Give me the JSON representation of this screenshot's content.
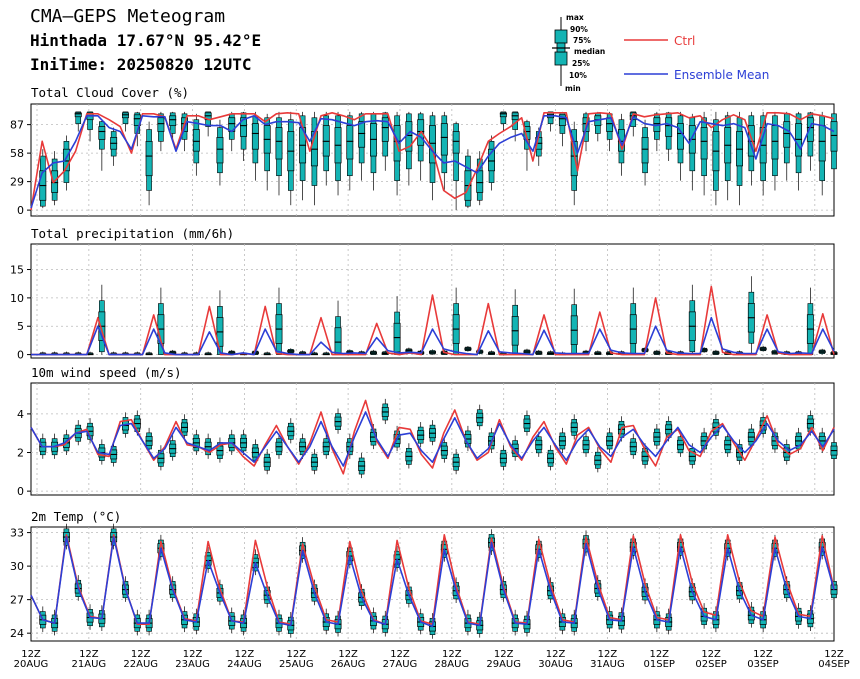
{
  "header": {
    "title": "CMA—GEPS Meteogram",
    "location": "Hinthada 17.67°N 95.42°E",
    "init": "IniTime: 20250820 12UTC"
  },
  "legend": {
    "box_labels": [
      "max",
      "90%",
      "75%",
      "median",
      "25%",
      "10%",
      "min"
    ],
    "ctrl": "Ctrl",
    "mean": "Ensemble Mean",
    "ctrl_color": "#e83a3a",
    "mean_color": "#2c3fd6",
    "box_color": "#14b4b4"
  },
  "chart_data": [
    {
      "type": "line",
      "title": "Total Cloud Cover (%)",
      "ylim": [
        -6,
        108
      ],
      "yticks": [
        0,
        29,
        58,
        87
      ],
      "grid": true,
      "x_step_hours": 6,
      "series": [
        {
          "name": "Ctrl",
          "values": [
            0,
            70,
            28,
            40,
            60,
            98,
            98,
            92,
            85,
            58,
            98,
            98,
            95,
            62,
            96,
            96,
            92,
            95,
            98,
            98,
            98,
            90,
            98,
            99,
            98,
            60,
            96,
            99,
            96,
            92,
            98,
            98,
            98,
            60,
            65,
            80,
            62,
            20,
            12,
            18,
            42,
            70,
            78,
            85,
            94,
            50,
            99,
            99,
            99,
            40,
            98,
            99,
            98,
            62,
            98,
            95,
            97,
            98,
            99,
            94,
            96,
            84,
            92,
            97,
            92,
            60,
            99,
            99,
            98,
            92,
            98,
            96,
            93
          ]
        },
        {
          "name": "Ensemble Mean",
          "values": [
            2,
            38,
            48,
            50,
            70,
            96,
            96,
            84,
            80,
            62,
            96,
            95,
            95,
            60,
            90,
            88,
            86,
            86,
            80,
            92,
            96,
            87,
            90,
            90,
            89,
            70,
            93,
            92,
            89,
            86,
            90,
            91,
            90,
            68,
            80,
            74,
            60,
            48,
            50,
            44,
            38,
            55,
            68,
            74,
            78,
            60,
            96,
            96,
            94,
            58,
            90,
            92,
            94,
            66,
            95,
            88,
            86,
            88,
            84,
            68,
            90,
            88,
            86,
            88,
            84,
            52,
            88,
            86,
            80,
            62,
            88,
            86,
            80
          ]
        }
      ],
      "boxes": [
        [
          0,
          30,
          58,
          70,
          80,
          88,
          90
        ],
        [
          2,
          4,
          10,
          25,
          40,
          55,
          62
        ],
        [
          5,
          10,
          18,
          28,
          40,
          52,
          60
        ],
        [
          20,
          28,
          40,
          50,
          62,
          70,
          76
        ],
        [
          80,
          88,
          95,
          98,
          99,
          100,
          100
        ],
        [
          70,
          82,
          92,
          96,
          99,
          100,
          100
        ],
        [
          40,
          62,
          72,
          80,
          85,
          90,
          92
        ],
        [
          45,
          55,
          62,
          68,
          74,
          80,
          84
        ],
        [
          80,
          88,
          94,
          97,
          99,
          100,
          100
        ],
        [
          65,
          78,
          86,
          93,
          97,
          99,
          100
        ],
        [
          5,
          20,
          35,
          55,
          70,
          82,
          90
        ],
        [
          60,
          70,
          80,
          88,
          94,
          98,
          100
        ],
        [
          70,
          78,
          86,
          92,
          96,
          99,
          100
        ],
        [
          60,
          72,
          80,
          88,
          94,
          98,
          100
        ],
        [
          35,
          48,
          60,
          70,
          82,
          92,
          98
        ],
        [
          75,
          85,
          92,
          96,
          99,
          100,
          100
        ],
        [
          25,
          38,
          48,
          62,
          74,
          84,
          92
        ],
        [
          60,
          72,
          80,
          88,
          94,
          98,
          100
        ],
        [
          50,
          62,
          75,
          86,
          94,
          99,
          100
        ],
        [
          30,
          48,
          62,
          78,
          88,
          96,
          100
        ],
        [
          20,
          40,
          58,
          72,
          86,
          94,
          98
        ],
        [
          15,
          35,
          52,
          70,
          84,
          94,
          100
        ],
        [
          5,
          20,
          40,
          60,
          80,
          92,
          100
        ],
        [
          10,
          30,
          48,
          66,
          84,
          96,
          100
        ],
        [
          5,
          25,
          45,
          62,
          80,
          94,
          100
        ],
        [
          25,
          40,
          55,
          70,
          86,
          96,
          100
        ],
        [
          15,
          30,
          48,
          66,
          84,
          96,
          100
        ],
        [
          20,
          35,
          52,
          70,
          86,
          96,
          100
        ],
        [
          30,
          48,
          64,
          78,
          90,
          98,
          100
        ],
        [
          20,
          38,
          55,
          72,
          88,
          98,
          100
        ],
        [
          40,
          55,
          70,
          84,
          94,
          99,
          100
        ],
        [
          15,
          30,
          50,
          70,
          86,
          96,
          100
        ],
        [
          25,
          42,
          60,
          76,
          90,
          98,
          100
        ],
        [
          30,
          50,
          66,
          80,
          92,
          98,
          100
        ],
        [
          10,
          28,
          48,
          68,
          86,
          96,
          100
        ],
        [
          20,
          38,
          56,
          74,
          88,
          96,
          100
        ]
      ]
    },
    {
      "type": "line",
      "title": "Total precipitation (mm/6h)",
      "ylim": [
        -0.6,
        19.5
      ],
      "yticks": [
        0,
        5,
        10,
        15
      ],
      "grid": true,
      "series": [
        {
          "name": "Ctrl",
          "values": [
            0,
            0,
            0,
            0,
            0,
            0,
            6.5,
            0,
            0,
            0,
            0,
            7,
            0,
            0,
            0,
            0,
            8.5,
            0,
            0,
            0.2,
            0,
            8.5,
            0.2,
            0,
            0,
            0,
            6.5,
            0,
            0,
            0,
            0,
            5.5,
            0.3,
            0,
            0.3,
            0,
            10.5,
            0.4,
            0,
            0,
            0,
            9,
            0,
            0,
            0,
            0,
            7,
            0,
            0,
            0,
            0,
            7.5,
            0.3,
            0,
            0,
            0,
            10,
            0.3,
            0,
            0,
            0,
            12,
            0.4,
            0,
            0,
            0,
            7,
            0.3,
            0,
            0,
            0,
            7.2,
            0
          ]
        },
        {
          "name": "Ensemble Mean",
          "values": [
            0,
            0,
            0,
            0,
            0,
            0,
            5,
            0,
            0,
            0,
            0,
            4.5,
            0.3,
            0,
            0,
            0,
            4,
            0.3,
            0,
            0.3,
            0,
            4.5,
            0.6,
            0.2,
            0,
            0,
            2.2,
            0.4,
            0.2,
            0.3,
            0.2,
            3,
            0.7,
            0.3,
            0.4,
            0.3,
            4.5,
            1,
            0.5,
            0.2,
            0,
            4.2,
            0.5,
            0.3,
            0.2,
            0,
            4.3,
            0.3,
            0.2,
            0.2,
            0.2,
            4.5,
            0.8,
            0.3,
            0.2,
            0.2,
            5,
            0.8,
            0.3,
            0.2,
            0.2,
            6.5,
            1,
            0.4,
            0.2,
            0.2,
            4.5,
            0.5,
            0.2,
            0.3,
            0.2,
            4.5,
            0.6
          ]
        }
      ]
    },
    {
      "type": "line",
      "title": "10m wind speed (m/s)",
      "ylim": [
        -0.2,
        5.6
      ],
      "yticks": [
        0,
        2,
        4
      ],
      "grid": true,
      "series": [
        {
          "name": "Ctrl",
          "values": [
            3.3,
            2.3,
            2.3,
            2.4,
            3.0,
            3.2,
            1.9,
            1.8,
            3.6,
            3.7,
            2.6,
            1.6,
            2.3,
            3.6,
            2.4,
            2.3,
            2.0,
            2.4,
            2.5,
            1.8,
            1.3,
            2.4,
            3.4,
            2.3,
            1.4,
            2.5,
            4.1,
            2.2,
            0.9,
            3.1,
            4.7,
            2.6,
            1.7,
            3.3,
            3.2,
            1.9,
            1.2,
            3.0,
            4.2,
            2.6,
            1.6,
            2.0,
            3.7,
            2.3,
            1.6,
            2.8,
            3.6,
            2.3,
            1.4,
            2.9,
            3.3,
            2.2,
            1.5,
            3.3,
            3.4,
            2.2,
            1.3,
            2.8,
            3.2,
            2.1,
            1.8,
            3.1,
            3.5,
            2.5,
            1.6,
            2.7,
            3.9,
            2.4,
            1.9,
            2.2,
            3.3,
            2.1,
            3.3
          ]
        },
        {
          "name": "Ensemble Mean",
          "values": [
            3.3,
            2.3,
            2.3,
            2.5,
            3.0,
            3.1,
            2.0,
            1.9,
            3.4,
            3.5,
            2.6,
            1.7,
            2.2,
            3.3,
            2.5,
            2.3,
            2.1,
            2.5,
            2.5,
            2.0,
            1.5,
            2.3,
            3.1,
            2.3,
            1.5,
            2.3,
            3.6,
            2.3,
            1.3,
            2.8,
            4.1,
            2.7,
            1.8,
            2.9,
            3.0,
            2.1,
            1.5,
            2.7,
            3.8,
            2.6,
            1.7,
            2.2,
            3.5,
            2.4,
            1.7,
            2.6,
            3.3,
            2.4,
            1.6,
            2.6,
            3.2,
            2.3,
            1.8,
            2.8,
            3.2,
            2.4,
            1.8,
            2.6,
            3.3,
            2.4,
            2.0,
            2.8,
            3.4,
            2.6,
            2.0,
            2.6,
            3.5,
            2.6,
            2.1,
            2.4,
            3.1,
            2.3,
            3.2
          ]
        }
      ]
    },
    {
      "type": "line",
      "title": "2m Temp (°C)",
      "ylim": [
        23.3,
        33.5
      ],
      "yticks": [
        24,
        27,
        30,
        33
      ],
      "grid": true,
      "series": [
        {
          "name": "Ctrl",
          "values": [
            27.4,
            25.2,
            24.9,
            32.8,
            28.2,
            25.5,
            25.3,
            32.8,
            28.0,
            24.8,
            24.8,
            32.2,
            28.1,
            25.3,
            25.1,
            32.2,
            28.0,
            25.1,
            25.0,
            32.3,
            28.2,
            25.0,
            24.8,
            32.0,
            28.2,
            25.2,
            25.0,
            32.2,
            27.8,
            25.2,
            24.8,
            32.3,
            28.0,
            25.1,
            24.8,
            32.8,
            28.2,
            25.0,
            24.8,
            32.5,
            28.2,
            25.0,
            24.9,
            32.4,
            28.3,
            25.2,
            25.0,
            32.6,
            28.5,
            25.4,
            25.2,
            32.7,
            28.4,
            25.4,
            25.2,
            32.8,
            28.5,
            25.9,
            25.6,
            32.8,
            28.6,
            26.0,
            25.5,
            32.6,
            28.6,
            25.7,
            25.5,
            32.7,
            28.0
          ]
        },
        {
          "name": "Ensemble Mean",
          "values": [
            27.4,
            25.2,
            24.9,
            32.6,
            28.0,
            25.4,
            25.3,
            32.6,
            27.9,
            24.9,
            24.9,
            31.6,
            27.9,
            25.2,
            25.0,
            30.5,
            27.6,
            25.1,
            24.9,
            30.3,
            27.4,
            24.9,
            24.7,
            31.4,
            27.6,
            25.0,
            24.8,
            30.9,
            27.2,
            25.1,
            24.8,
            30.6,
            27.4,
            25.0,
            24.6,
            31.5,
            27.8,
            24.9,
            24.7,
            32.1,
            27.9,
            24.9,
            24.8,
            31.5,
            27.8,
            25.0,
            24.9,
            32.0,
            28.0,
            25.2,
            25.1,
            31.7,
            27.7,
            25.2,
            25.0,
            31.7,
            27.7,
            25.5,
            25.2,
            31.6,
            27.8,
            25.6,
            25.2,
            31.6,
            27.9,
            25.5,
            25.3,
            31.7,
            27.9
          ]
        }
      ]
    }
  ],
  "x_axis": {
    "hour_label": "12Z",
    "dates": [
      "20AUG",
      "21AUG",
      "22AUG",
      "23AUG",
      "24AUG",
      "25AUG",
      "26AUG",
      "27AUG",
      "28AUG",
      "29AUG",
      "30AUG",
      "31AUG",
      "01SEP",
      "02SEP",
      "03SEP",
      "04SEP"
    ]
  }
}
